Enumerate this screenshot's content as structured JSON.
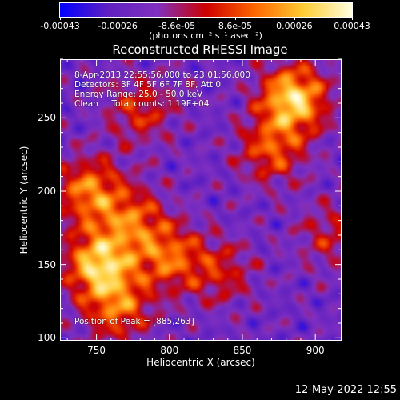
{
  "chart_data": {
    "type": "heatmap",
    "title": "Reconstructed RHESSI Image",
    "xlabel": "Heliocentric X (arcsec)",
    "ylabel": "Heliocentric Y (arcsec)",
    "xlim": [
      725,
      918
    ],
    "ylim": [
      98,
      290
    ],
    "xticks": [
      "750",
      "800",
      "850",
      "900"
    ],
    "xtick_values": [
      750,
      800,
      850,
      900
    ],
    "yticks": [
      "100",
      "150",
      "200",
      "250"
    ],
    "ytick_values": [
      100,
      150,
      200,
      250
    ],
    "colorbar": {
      "labels": [
        "-0.00043",
        "-0.00026",
        "-8.6e-05",
        "8.6e-05",
        "0.00026",
        "0.00043"
      ],
      "values": [
        -0.00043,
        -0.00026,
        -8.6e-05,
        8.6e-05,
        0.00026,
        0.00043
      ],
      "units": "(photons cm⁻² s⁻¹ asec⁻²)",
      "range": [
        -0.00043,
        0.00043
      ]
    },
    "annotations": {
      "time": "8-Apr-2013 22:55:56.000 to 23:01:56.000",
      "detectors": "Detectors: 3F 4F 5F 6F 7F 8F, Att 0",
      "energy": "Energy Range: 25.0 - 50.0 keV",
      "clean": "Clean     Total counts: 1.19E+04",
      "peak": "Position of Peak = [885,263]"
    },
    "sources": [
      {
        "x": 885,
        "y": 263,
        "strength": 1.0
      },
      {
        "x": 870,
        "y": 228,
        "strength": 0.55
      },
      {
        "x": 752,
        "y": 150,
        "strength": 0.95
      },
      {
        "x": 745,
        "y": 200,
        "strength": 0.7
      },
      {
        "x": 775,
        "y": 180,
        "strength": 0.55
      },
      {
        "x": 765,
        "y": 120,
        "strength": 0.6
      },
      {
        "x": 780,
        "y": 255,
        "strength": 0.45
      },
      {
        "x": 800,
        "y": 155,
        "strength": 0.6
      },
      {
        "x": 835,
        "y": 145,
        "strength": 0.4
      },
      {
        "x": 910,
        "y": 170,
        "strength": 0.35
      }
    ],
    "colors": [
      "#0000ff",
      "#6020c0",
      "#8030c0",
      "#cc0000",
      "#ff6600",
      "#ffcc33",
      "#ffffe0"
    ]
  },
  "timestamp": "12-May-2022 12:55"
}
